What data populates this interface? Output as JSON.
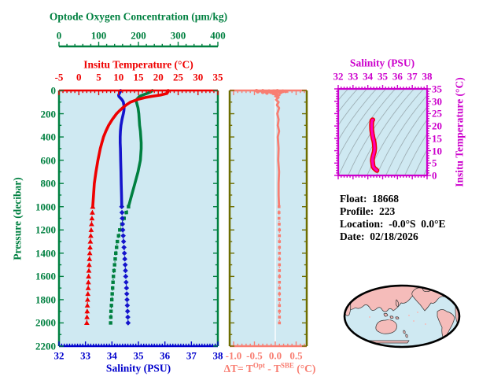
{
  "colors": {
    "background": "#ffffff",
    "panel_fill": "#cfe9f2",
    "green": "#008040",
    "red": "#ee0000",
    "curve_blue": "#1414cc",
    "blue": "#0000cc",
    "magenta": "#cc00cc",
    "ts_curve": "#ff00bb",
    "ts_curve_outline": "#ee0000",
    "salmon": "#f87e72",
    "olive": "#6e6e00",
    "contour_gray": "#9fb0b6",
    "map_land": "#f5bcba",
    "map_ocean": "#cfe9f2",
    "map_outline": "#000000",
    "text_black": "#000000"
  },
  "axes": {
    "oxygen": {
      "title": "Optode Oxygen Concentration (μm/kg)",
      "min": 0,
      "max": 400,
      "major": 100,
      "minor": 20,
      "tick_labels": [
        "0",
        "100",
        "200",
        "300",
        "400"
      ],
      "tick_values": [
        0,
        100,
        200,
        300,
        400
      ]
    },
    "temperature": {
      "title": "Insitu Temperature (°C)",
      "min": -5,
      "max": 35,
      "major": 5,
      "minor": 1,
      "tick_labels": [
        "-5",
        "0",
        "5",
        "10",
        "15",
        "20",
        "25",
        "30",
        "35"
      ],
      "tick_values": [
        -5,
        0,
        5,
        10,
        15,
        20,
        25,
        30,
        35
      ]
    },
    "pressure": {
      "title": "Pressure (decibar)",
      "min": 0,
      "max": 2200,
      "major": 200,
      "minor": 100,
      "tick_labels": [
        "0",
        "200",
        "400",
        "600",
        "800",
        "1000",
        "1200",
        "1400",
        "1600",
        "1800",
        "2000",
        "2200"
      ],
      "tick_values": [
        0,
        200,
        400,
        600,
        800,
        1000,
        1200,
        1400,
        1600,
        1800,
        2000,
        2200
      ]
    },
    "salinity": {
      "title": "Salinity (PSU)",
      "min": 32,
      "max": 38,
      "major": 1,
      "minor": 0.1,
      "tick_labels": [
        "32",
        "33",
        "34",
        "35",
        "36",
        "37",
        "38"
      ],
      "tick_values": [
        32,
        33,
        34,
        35,
        36,
        37,
        38
      ]
    },
    "delta_t": {
      "t1": "ΔT= T",
      "t2": "Opt",
      "t3": " - T",
      "t4": "SBE",
      "t5": " (°C)",
      "min": -1.094,
      "max": 0.755,
      "major": 0.5,
      "minor": 0.1,
      "tick_labels": [
        "-1.0",
        "-0.5",
        "0.0",
        "0.5"
      ],
      "tick_values": [
        -1.0,
        -0.5,
        0.0,
        0.5
      ]
    },
    "ts_salinity": {
      "title": "Salinity (PSU)",
      "min": 32,
      "max": 38,
      "major": 1,
      "minor": 0.2,
      "tick_labels": [
        "32",
        "33",
        "34",
        "35",
        "36",
        "37",
        "38"
      ],
      "tick_values": [
        32,
        33,
        34,
        35,
        36,
        37,
        38
      ]
    },
    "ts_temperature": {
      "title": "Insitu Temperature (°C)",
      "min": 0,
      "max": 35,
      "major": 5,
      "minor": 1,
      "tick_labels": [
        "0",
        "5",
        "10",
        "15",
        "20",
        "25",
        "30",
        "35"
      ],
      "tick_values": [
        0,
        5,
        10,
        15,
        20,
        25,
        30,
        35
      ]
    }
  },
  "info": {
    "rows": [
      {
        "label": "Float:",
        "value": "18668"
      },
      {
        "label": "Profile:",
        "value": "223"
      },
      {
        "label": "Location:",
        "value": "-0.0°S  0.0°E"
      },
      {
        "label": "Date:",
        "value": "02/18/2026"
      }
    ]
  },
  "chart_data": [
    {
      "type": "line",
      "name": "vertical-profiles-vs-pressure",
      "ylabel": "Pressure (decibar)",
      "ylim": [
        0,
        2200
      ],
      "deep_marker_start_db": 1000,
      "pressure_db": [
        0,
        10,
        25,
        40,
        50,
        60,
        75,
        90,
        100,
        125,
        150,
        175,
        200,
        250,
        300,
        350,
        400,
        450,
        500,
        600,
        700,
        800,
        900,
        1000,
        1100,
        1200,
        1300,
        1400,
        1500,
        1600,
        1700,
        1800,
        1900,
        2000
      ],
      "series": [
        {
          "name": "Insitu Temperature (°C)",
          "axis": "temperature",
          "color": "#ee0000",
          "deep_marker": "triangle",
          "values": [
            22.5,
            22.45,
            22.2,
            20.5,
            18.5,
            16.8,
            15.0,
            13.8,
            13.0,
            11.9,
            11.0,
            10.2,
            9.5,
            8.4,
            7.5,
            6.8,
            6.2,
            5.8,
            5.4,
            4.8,
            4.3,
            3.9,
            3.7,
            3.5,
            3.3,
            3.1,
            2.9,
            2.75,
            2.6,
            2.45,
            2.35,
            2.2,
            2.1,
            2.0
          ]
        },
        {
          "name": "Salinity (PSU)",
          "axis": "salinity",
          "color": "#1414cc",
          "deep_marker": "diamond",
          "values": [
            34.33,
            34.32,
            34.28,
            34.25,
            34.26,
            34.3,
            34.36,
            34.41,
            34.43,
            34.45,
            34.46,
            34.45,
            34.43,
            34.38,
            34.34,
            34.32,
            34.31,
            34.31,
            34.32,
            34.33,
            34.34,
            34.35,
            34.36,
            34.37,
            34.39,
            34.41,
            34.44,
            34.47,
            34.5,
            34.52,
            34.55,
            34.57,
            34.59,
            34.61
          ]
        },
        {
          "name": "Optode Oxygen Concentration (μm/kg)",
          "axis": "oxygen",
          "color": "#008040",
          "deep_marker": "square",
          "values": [
            235,
            232,
            222,
            210,
            203,
            200,
            196,
            194,
            195,
            197,
            199,
            200,
            201,
            202,
            203,
            205,
            206,
            207,
            207,
            205,
            199,
            191,
            183,
            175,
            164,
            153,
            147,
            143,
            140,
            137,
            135,
            133,
            131,
            130
          ]
        }
      ]
    },
    {
      "type": "line",
      "name": "delta-t-vs-pressure",
      "xlabel": "ΔT= TOpt - TSBE (°C)",
      "xlim": [
        -1.094,
        0.755
      ],
      "ylim": [
        0,
        2200
      ],
      "points_p_dt": [
        [
          0,
          -0.05
        ],
        [
          4,
          0.22
        ],
        [
          7,
          -0.38
        ],
        [
          10,
          0.12
        ],
        [
          13,
          -0.18
        ],
        [
          16,
          0.08
        ],
        [
          20,
          -0.12
        ],
        [
          25,
          0.05
        ],
        [
          30,
          -0.06
        ],
        [
          40,
          0.1
        ],
        [
          50,
          0.0
        ],
        [
          60,
          0.08
        ],
        [
          80,
          0.02
        ],
        [
          100,
          0.08
        ],
        [
          125,
          0.04
        ],
        [
          150,
          0.09
        ],
        [
          200,
          0.05
        ],
        [
          250,
          0.08
        ],
        [
          300,
          0.06
        ],
        [
          350,
          0.09
        ],
        [
          400,
          0.06
        ],
        [
          500,
          0.08
        ],
        [
          600,
          0.07
        ],
        [
          700,
          0.09
        ],
        [
          800,
          0.08
        ],
        [
          900,
          0.08
        ],
        [
          1000,
          0.09
        ],
        [
          1100,
          0.09
        ],
        [
          1200,
          0.1
        ],
        [
          1300,
          0.1
        ],
        [
          1400,
          0.1
        ],
        [
          1500,
          0.1
        ],
        [
          1600,
          0.1
        ],
        [
          1700,
          0.1
        ],
        [
          1800,
          0.1
        ],
        [
          1900,
          0.1
        ],
        [
          2000,
          0.1
        ]
      ],
      "surface_scatter_p_dt": [
        [
          2,
          -0.45
        ],
        [
          3,
          -0.3
        ],
        [
          5,
          -0.15
        ],
        [
          6,
          0.18
        ],
        [
          8,
          0.25
        ],
        [
          9,
          -0.25
        ],
        [
          12,
          0.15
        ],
        [
          3,
          0.05
        ],
        [
          15,
          -0.3
        ],
        [
          18,
          0.12
        ],
        [
          22,
          -0.2
        ],
        [
          11,
          -0.42
        ]
      ]
    },
    {
      "type": "line",
      "name": "ts-diagram",
      "xlabel": "Salinity (PSU)",
      "ylabel": "Insitu Temperature (°C)",
      "xlim": [
        32,
        38
      ],
      "ylim": [
        0,
        35
      ],
      "note": "Magenta curve = temperature vs salinity from the profile series above, drawn over gray density contour lines"
    }
  ]
}
